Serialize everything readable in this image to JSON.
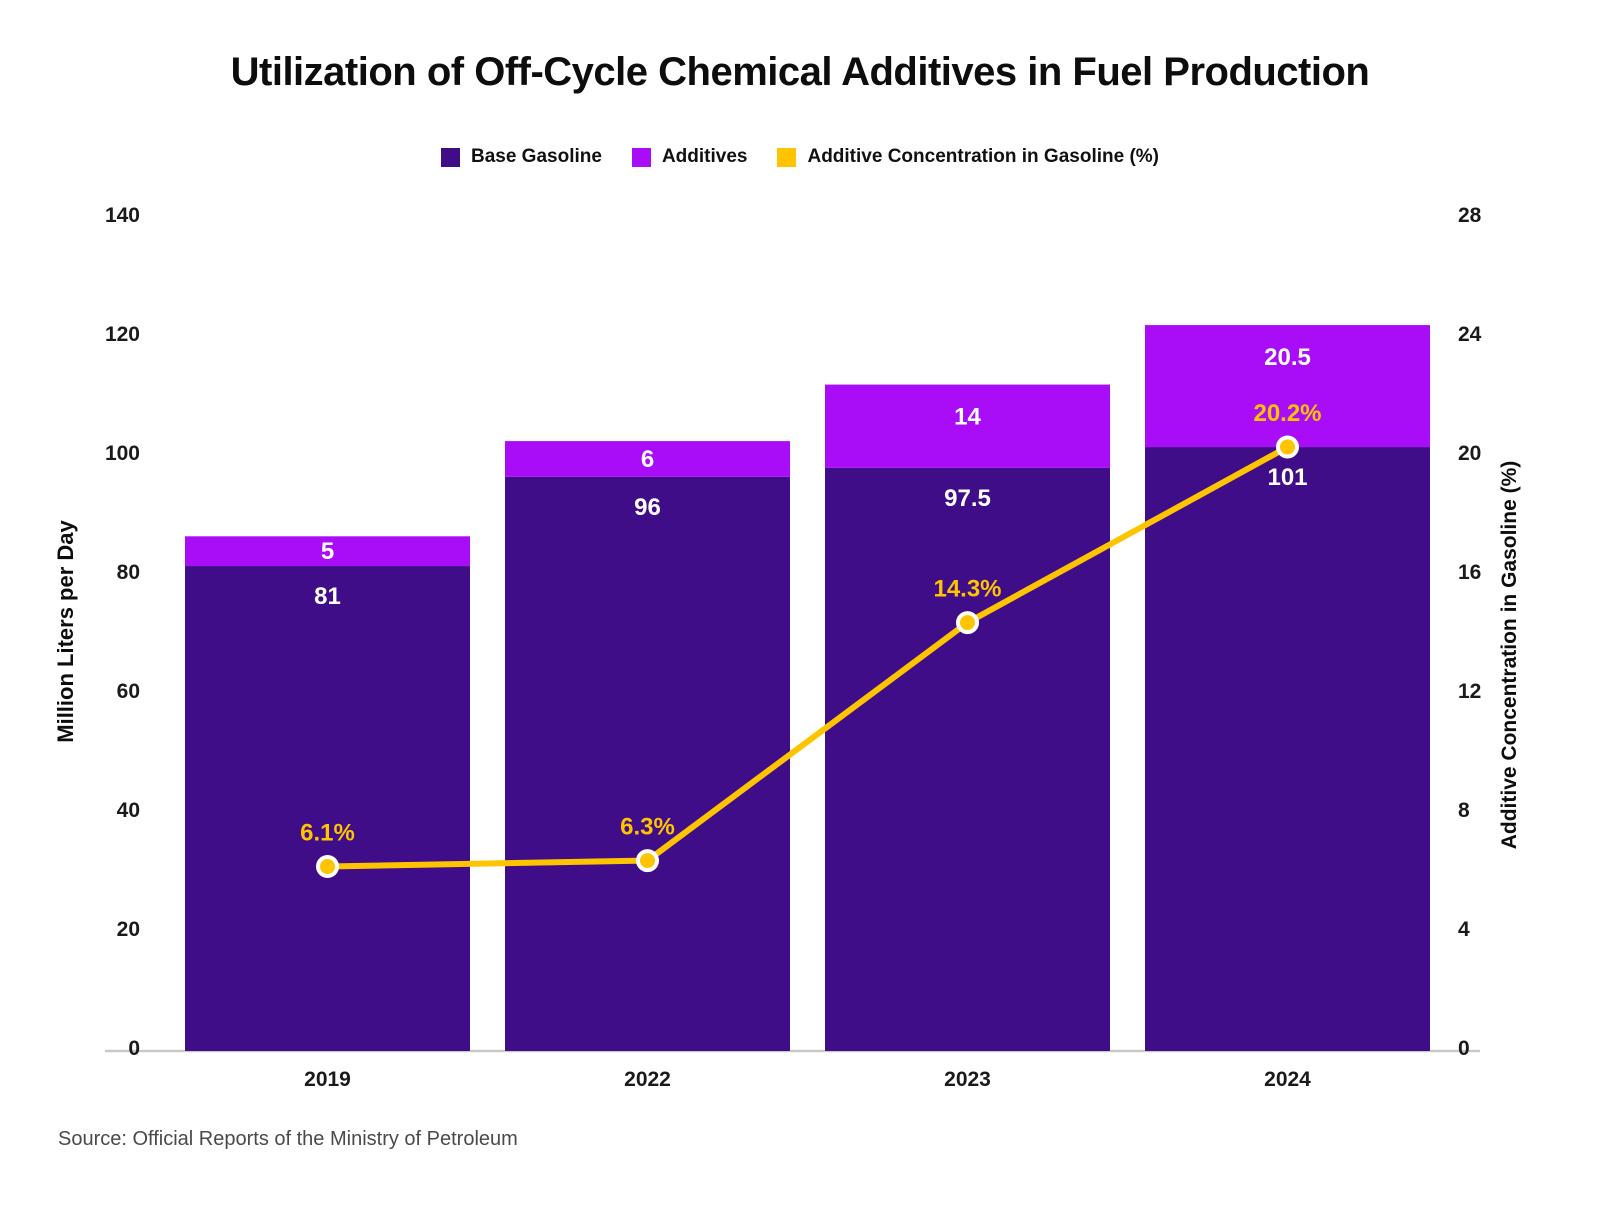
{
  "page": {
    "title": "Utilization of Off-Cycle Chemical Additives in Fuel Production",
    "source": "Source: Official Reports of the Ministry of Petroleum"
  },
  "legend": {
    "items": [
      {
        "label": "Base Gasoline",
        "color": "#3F0D87"
      },
      {
        "label": "Additives",
        "color": "#A90DF7"
      },
      {
        "label": "Additive Concentration in Gasoline (%)",
        "color": "#FFC400"
      }
    ]
  },
  "chart_data": {
    "type": "bar",
    "subtype": "stacked_bars_with_line_dual_axis",
    "title": "Utilization of Off-Cycle Chemical Additives in Fuel Production",
    "categories": [
      "2019",
      "2022",
      "2023",
      "2024"
    ],
    "series": [
      {
        "name": "Base Gasoline",
        "kind": "bar",
        "stack": "fuel",
        "axis": "left",
        "color": "#3F0D87",
        "values": [
          81,
          96,
          97.5,
          101
        ],
        "data_labels": [
          "81",
          "96",
          "97.5",
          "101"
        ],
        "label_color": "#FFFFFF"
      },
      {
        "name": "Additives",
        "kind": "bar",
        "stack": "fuel",
        "axis": "left",
        "color": "#A90DF7",
        "values": [
          5,
          6,
          14,
          20.5
        ],
        "data_labels": [
          "5",
          "6",
          "14",
          "20.5"
        ],
        "label_color": "#FFFFFF"
      },
      {
        "name": "Additive Concentration in Gasoline (%)",
        "kind": "line",
        "axis": "right",
        "color": "#FFC400",
        "point_fill": "#FFC400",
        "point_stroke": "#FFFFFF",
        "values": [
          6.1,
          6.3,
          14.3,
          20.2
        ],
        "data_labels": [
          "6.1%",
          "6.3%",
          "14.3%",
          "20.2%"
        ],
        "label_color": "#FFC400"
      }
    ],
    "left_axis": {
      "title": "Million Liters per Day",
      "min": 0,
      "max": 140,
      "ticks": [
        "0",
        "20",
        "40",
        "60",
        "80",
        "100",
        "120",
        "140"
      ]
    },
    "right_axis": {
      "title": "Additive Concentration in Gasoline (%)",
      "min": 0,
      "max": 28,
      "ticks": [
        "0",
        "4",
        "8",
        "12",
        "16",
        "20",
        "24",
        "28"
      ]
    },
    "grid": false,
    "legend_position": "top",
    "background": "#FFFFFF",
    "tick_color": "#1a1a1a",
    "axis_line_color": "#c9c9c9"
  }
}
